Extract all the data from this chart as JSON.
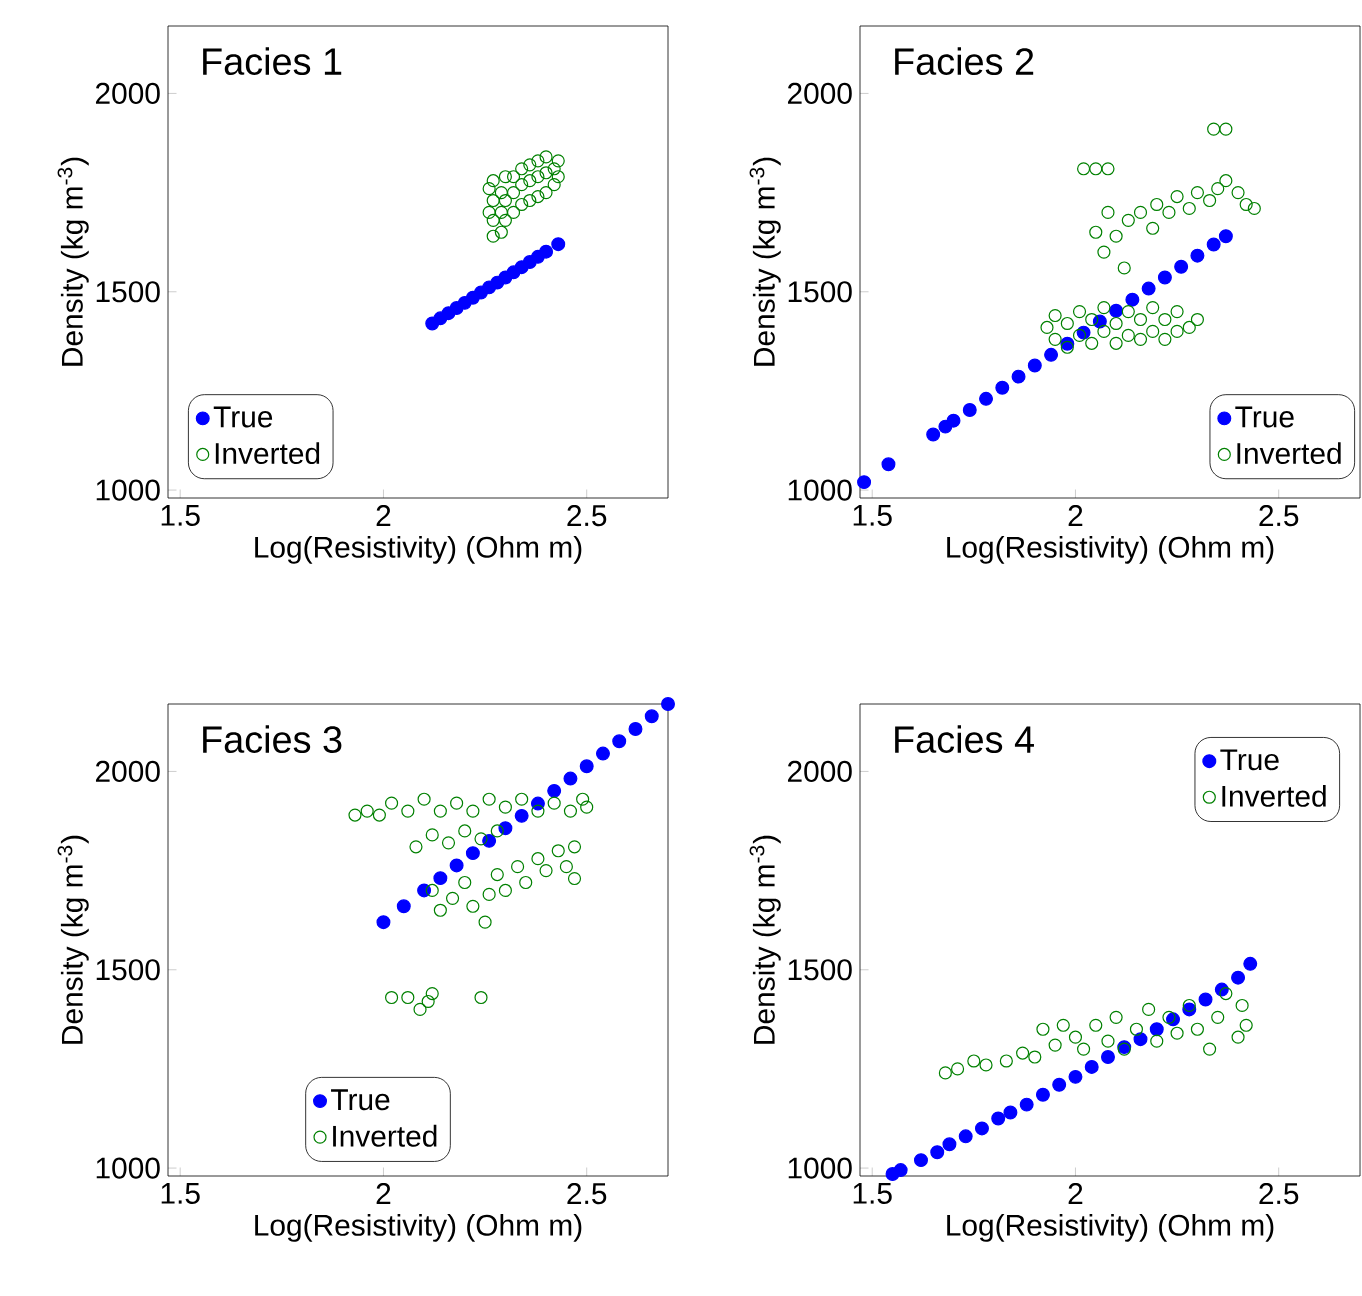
{
  "chart_data": [
    {
      "type": "scatter",
      "title": "Facies 1",
      "xlabel": "Log(Resistivity) (Ohm m)",
      "ylabel": "Density (kg m$^{-3}$)",
      "xlim": [
        1.47,
        2.7
      ],
      "ylim": [
        980,
        2170
      ],
      "xticks": [
        1.5,
        2,
        2.5
      ],
      "yticks": [
        1000,
        1500,
        2000
      ],
      "legend": "bottom left",
      "marker": "circle",
      "grid": false,
      "series": [
        {
          "name": "True",
          "color": "#0000ff",
          "x": [
            2.12,
            2.14,
            2.16,
            2.18,
            2.2,
            2.22,
            2.24,
            2.26,
            2.28,
            2.3,
            2.32,
            2.34,
            2.36,
            2.38,
            2.4,
            2.43
          ],
          "values": [
            1420,
            1433,
            1446,
            1459,
            1472,
            1485,
            1498,
            1511,
            1523,
            1536,
            1549,
            1562,
            1575,
            1588,
            1601,
            1620
          ]
        },
        {
          "name": "Inverted",
          "color": "#008000",
          "x": [
            2.26,
            2.26,
            2.27,
            2.27,
            2.27,
            2.27,
            2.29,
            2.29,
            2.29,
            2.3,
            2.3,
            2.3,
            2.32,
            2.32,
            2.32,
            2.34,
            2.34,
            2.34,
            2.36,
            2.36,
            2.36,
            2.38,
            2.38,
            2.38,
            2.4,
            2.4,
            2.4,
            2.42,
            2.42,
            2.43,
            2.43
          ],
          "values": [
            1700,
            1760,
            1640,
            1680,
            1730,
            1780,
            1650,
            1700,
            1750,
            1680,
            1730,
            1790,
            1700,
            1750,
            1790,
            1720,
            1770,
            1810,
            1730,
            1780,
            1820,
            1740,
            1790,
            1830,
            1750,
            1800,
            1840,
            1770,
            1810,
            1830,
            1790
          ]
        }
      ]
    },
    {
      "type": "scatter",
      "title": "Facies 2",
      "xlabel": "Log(Resistivity) (Ohm m)",
      "ylabel": "Density (kg m$^{-3}$)",
      "xlim": [
        1.47,
        2.7
      ],
      "ylim": [
        980,
        2170
      ],
      "xticks": [
        1.5,
        2,
        2.5
      ],
      "yticks": [
        1000,
        1500,
        2000
      ],
      "legend": "bottom right",
      "marker": "circle",
      "grid": false,
      "series": [
        {
          "name": "True",
          "color": "#0000ff",
          "x": [
            1.48,
            1.54,
            1.65,
            1.68,
            1.7,
            1.74,
            1.78,
            1.82,
            1.86,
            1.9,
            1.94,
            1.98,
            2.02,
            2.06,
            2.1,
            2.14,
            2.18,
            2.22,
            2.26,
            2.3,
            2.34,
            2.37
          ],
          "values": [
            1020,
            1065,
            1140,
            1160,
            1175,
            1202,
            1230,
            1258,
            1286,
            1314,
            1341,
            1369,
            1397,
            1425,
            1452,
            1480,
            1508,
            1536,
            1563,
            1591,
            1619,
            1640
          ]
        },
        {
          "name": "Inverted",
          "color": "#008000",
          "x": [
            1.93,
            1.95,
            1.95,
            1.98,
            1.98,
            2.01,
            2.01,
            2.04,
            2.04,
            2.07,
            2.07,
            2.1,
            2.1,
            2.13,
            2.13,
            2.16,
            2.16,
            2.19,
            2.19,
            2.22,
            2.22,
            2.25,
            2.25,
            2.28,
            2.3,
            2.05,
            2.07,
            2.08,
            2.1,
            2.12,
            2.13,
            2.16,
            2.19,
            2.2,
            2.23,
            2.25,
            2.28,
            2.3,
            2.33,
            2.35,
            2.37,
            2.4,
            2.42,
            2.44,
            2.02,
            2.05,
            2.08,
            2.34,
            2.37
          ],
          "values": [
            1410,
            1380,
            1440,
            1360,
            1420,
            1390,
            1450,
            1370,
            1430,
            1400,
            1460,
            1370,
            1420,
            1390,
            1450,
            1380,
            1430,
            1400,
            1460,
            1380,
            1430,
            1400,
            1450,
            1410,
            1430,
            1650,
            1600,
            1700,
            1640,
            1560,
            1680,
            1700,
            1660,
            1720,
            1700,
            1740,
            1710,
            1750,
            1730,
            1760,
            1780,
            1750,
            1720,
            1710,
            1810,
            1810,
            1810,
            1910,
            1910
          ]
        }
      ]
    },
    {
      "type": "scatter",
      "title": "Facies 3",
      "xlabel": "Log(Resistivity) (Ohm m)",
      "ylabel": "Density (kg m$^{-3}$)",
      "xlim": [
        1.47,
        2.7
      ],
      "ylim": [
        980,
        2170
      ],
      "xticks": [
        1.5,
        2,
        2.5
      ],
      "yticks": [
        1000,
        1500,
        2000
      ],
      "legend": "bottom",
      "marker": "circle",
      "grid": false,
      "series": [
        {
          "name": "True",
          "color": "#0000ff",
          "x": [
            2.0,
            2.05,
            2.1,
            2.14,
            2.18,
            2.22,
            2.26,
            2.3,
            2.34,
            2.38,
            2.42,
            2.46,
            2.5,
            2.54,
            2.58,
            2.62,
            2.66,
            2.7
          ],
          "values": [
            1620,
            1660,
            1700,
            1731,
            1763,
            1794,
            1825,
            1857,
            1888,
            1919,
            1951,
            1982,
            2013,
            2045,
            2076,
            2107,
            2139,
            2170
          ]
        },
        {
          "name": "Inverted",
          "color": "#008000",
          "x": [
            1.93,
            1.96,
            1.99,
            2.02,
            2.06,
            2.1,
            2.14,
            2.18,
            2.22,
            2.26,
            2.3,
            2.34,
            2.38,
            2.42,
            2.46,
            2.49,
            2.5,
            2.08,
            2.12,
            2.16,
            2.2,
            2.24,
            2.28,
            2.12,
            2.14,
            2.17,
            2.2,
            2.22,
            2.25,
            2.26,
            2.28,
            2.3,
            2.33,
            2.35,
            2.38,
            2.4,
            2.43,
            2.45,
            2.47,
            2.47,
            2.02,
            2.06,
            2.09,
            2.11,
            2.12,
            2.24
          ],
          "values": [
            1890,
            1900,
            1890,
            1920,
            1900,
            1930,
            1900,
            1920,
            1900,
            1930,
            1910,
            1930,
            1900,
            1920,
            1900,
            1930,
            1910,
            1810,
            1840,
            1820,
            1850,
            1830,
            1850,
            1700,
            1650,
            1680,
            1720,
            1660,
            1620,
            1690,
            1740,
            1700,
            1760,
            1720,
            1780,
            1750,
            1800,
            1760,
            1730,
            1810,
            1430,
            1430,
            1400,
            1420,
            1440,
            1430
          ]
        }
      ]
    },
    {
      "type": "scatter",
      "title": "Facies 4",
      "xlabel": "Log(Resistivity) (Ohm m)",
      "ylabel": "Density (kg m$^{-3}$)",
      "xlim": [
        1.47,
        2.7
      ],
      "ylim": [
        980,
        2170
      ],
      "xticks": [
        1.5,
        2,
        2.5
      ],
      "yticks": [
        1000,
        1500,
        2000
      ],
      "legend": "top right",
      "marker": "circle",
      "grid": false,
      "series": [
        {
          "name": "True",
          "color": "#0000ff",
          "x": [
            1.55,
            1.57,
            1.62,
            1.66,
            1.69,
            1.73,
            1.77,
            1.81,
            1.84,
            1.88,
            1.92,
            1.96,
            2.0,
            2.04,
            2.08,
            2.12,
            2.16,
            2.2,
            2.24,
            2.28,
            2.32,
            2.36,
            2.4,
            2.43
          ],
          "values": [
            985,
            995,
            1020,
            1040,
            1060,
            1080,
            1100,
            1125,
            1140,
            1160,
            1185,
            1210,
            1230,
            1255,
            1280,
            1305,
            1325,
            1350,
            1375,
            1400,
            1425,
            1450,
            1480,
            1515
          ]
        },
        {
          "name": "Inverted",
          "color": "#008000",
          "x": [
            1.68,
            1.71,
            1.75,
            1.78,
            1.83,
            1.87,
            1.9,
            1.92,
            1.95,
            1.97,
            2.0,
            2.02,
            2.05,
            2.08,
            2.1,
            2.12,
            2.15,
            2.18,
            2.2,
            2.23,
            2.25,
            2.28,
            2.3,
            2.33,
            2.35,
            2.37,
            2.4,
            2.42,
            2.41
          ],
          "values": [
            1240,
            1250,
            1270,
            1260,
            1270,
            1290,
            1280,
            1350,
            1310,
            1360,
            1330,
            1300,
            1360,
            1320,
            1380,
            1300,
            1350,
            1400,
            1320,
            1380,
            1340,
            1410,
            1350,
            1300,
            1380,
            1440,
            1330,
            1360,
            1410
          ]
        }
      ]
    }
  ]
}
